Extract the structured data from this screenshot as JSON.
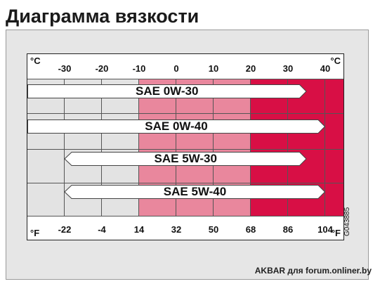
{
  "title": "Диаграмма вязкости",
  "celsius_unit": "°C",
  "fahrenheit_unit": "°F",
  "celsius_ticks": [
    "-30",
    "-20",
    "-10",
    "0",
    "10",
    "20",
    "30",
    "40"
  ],
  "fahrenheit_ticks": [
    "-22",
    "-4",
    "14",
    "32",
    "50",
    "68",
    "86",
    "104"
  ],
  "zone_colors": {
    "cold": "#e3e3e3",
    "mild": "#e9879d",
    "hot": "#d80f45"
  },
  "oils": [
    {
      "label": "SAE 0W-30",
      "from_c": -40,
      "to_c": 35,
      "arrow_left": false,
      "arrow_right": true
    },
    {
      "label": "SAE 0W-40",
      "from_c": -40,
      "to_c": 40,
      "arrow_left": false,
      "arrow_right": true
    },
    {
      "label": "SAE 5W-30",
      "from_c": -30,
      "to_c": 35,
      "arrow_left": true,
      "arrow_right": true
    },
    {
      "label": "SAE 5W-40",
      "from_c": -30,
      "to_c": 40,
      "arrow_left": true,
      "arrow_right": true
    }
  ],
  "side_code": "G043885",
  "credit": "AKBAR для forum.onliner.by"
}
